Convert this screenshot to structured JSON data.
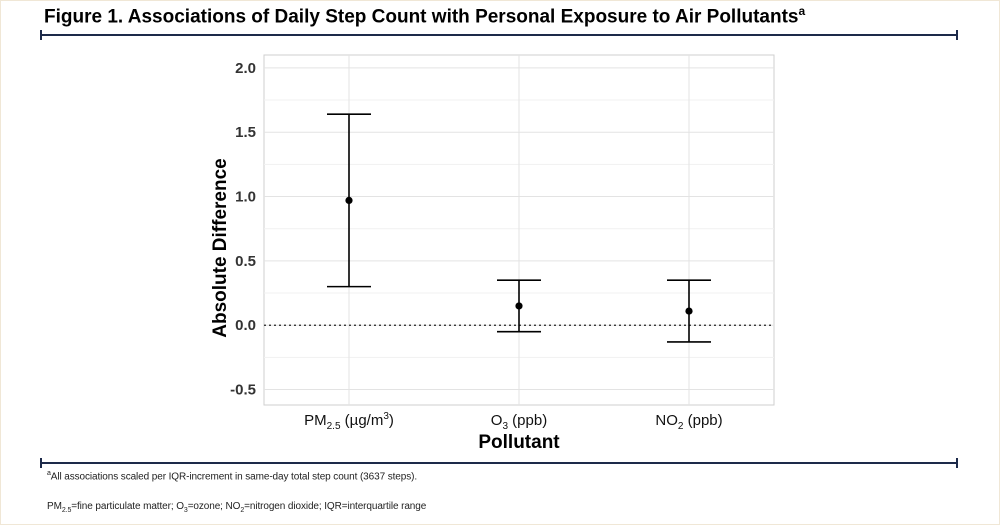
{
  "figure": {
    "title": "Figure 1. Associations of Daily Step Count with Personal Exposure to Air Pollutants",
    "title_superscript": "a"
  },
  "chart_data": {
    "type": "errorbar",
    "ylabel": "Absolute Difference",
    "xlabel": "Pollutant",
    "ylim": [
      -0.62,
      2.1
    ],
    "yticks": [
      -0.5,
      0.0,
      0.5,
      1.0,
      1.5,
      2.0
    ],
    "ytick_labels": [
      "-0.5",
      "0.0",
      "0.5",
      "1.0",
      "1.5",
      "2.0"
    ],
    "reference_line": 0,
    "grid": true,
    "categories": [
      {
        "main": "PM",
        "sub": "2.5",
        "unit": " (µg/m",
        "unit_sup": "3",
        "unit_end": ")"
      },
      {
        "main": "O",
        "sub": "3",
        "unit": " (ppb)",
        "unit_sup": "",
        "unit_end": ""
      },
      {
        "main": "NO",
        "sub": "2",
        "unit": " (ppb)",
        "unit_sup": "",
        "unit_end": ""
      }
    ],
    "points": [
      {
        "estimate": 0.97,
        "lower": 0.3,
        "upper": 1.64
      },
      {
        "estimate": 0.15,
        "lower": -0.05,
        "upper": 0.35
      },
      {
        "estimate": 0.11,
        "lower": -0.13,
        "upper": 0.35
      }
    ]
  },
  "footnotes": {
    "note_a_marker": "a",
    "note_a_text": "All associations scaled per IQR-increment in same-day total step count (3637 steps).",
    "abbrev": {
      "pm": "PM",
      "pm_sub": "2.5",
      "pm_def": "=fine particulate matter; O",
      "o3_sub": "3",
      "o3_def": "=ozone; NO",
      "no2_sub": "2",
      "no2_def": "=nitrogen dioxide; IQR=interquartile range"
    }
  }
}
